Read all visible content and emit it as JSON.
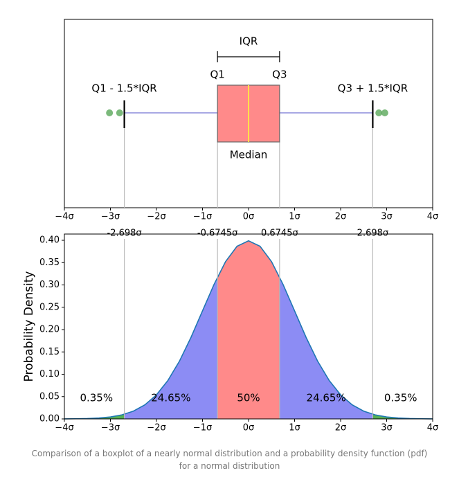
{
  "chart_data": [
    {
      "type": "box",
      "whisker_low": -2.698,
      "q1": -0.6745,
      "median": 0,
      "q3": 0.6745,
      "whisker_high": 2.698,
      "outliers": [
        -3.02,
        -2.8,
        2.83,
        2.96
      ],
      "xlim": [
        -4,
        4
      ],
      "xticks": [
        {
          "value": -4,
          "label": "−4σ"
        },
        {
          "value": -3,
          "label": "−3σ"
        },
        {
          "value": -2,
          "label": "−2σ"
        },
        {
          "value": -1,
          "label": "−1σ"
        },
        {
          "value": 0,
          "label": "0σ"
        },
        {
          "value": 1,
          "label": "1σ"
        },
        {
          "value": 2,
          "label": "2σ"
        },
        {
          "value": 3,
          "label": "3σ"
        },
        {
          "value": 4,
          "label": "4σ"
        }
      ],
      "labels": {
        "iqr": "IQR",
        "q1": "Q1",
        "q3": "Q3",
        "low": "Q1 - 1.5*IQR",
        "high": "Q3 + 1.5*IQR",
        "median": "Median"
      },
      "box_color": "#ff8a8a",
      "median_color": "#ffe04a",
      "whisker_color": "#8c8cdc",
      "outlier_color": "#5aa85a"
    },
    {
      "type": "density",
      "y_label": "Probability Density",
      "x": [
        -4,
        -3.75,
        -3.5,
        -3.25,
        -3,
        -2.75,
        -2.5,
        -2.25,
        -2,
        -1.75,
        -1.5,
        -1.25,
        -1,
        -0.75,
        -0.5,
        -0.25,
        0,
        0.25,
        0.5,
        0.75,
        1,
        1.25,
        1.5,
        1.75,
        2,
        2.25,
        2.5,
        2.75,
        3,
        3.25,
        3.5,
        3.75,
        4
      ],
      "values": [
        0.0001,
        0.0004,
        0.0009,
        0.002,
        0.0044,
        0.0091,
        0.0175,
        0.0317,
        0.054,
        0.0863,
        0.1295,
        0.1826,
        0.242,
        0.3011,
        0.3521,
        0.3867,
        0.3989,
        0.3867,
        0.3521,
        0.3011,
        0.242,
        0.1826,
        0.1295,
        0.0863,
        0.054,
        0.0317,
        0.0175,
        0.0091,
        0.0044,
        0.002,
        0.0009,
        0.0004,
        0.0001
      ],
      "curve_color": "#1f77b4",
      "regions": {
        "values": [
          0.35,
          24.65,
          50,
          24.65,
          0.35
        ],
        "value_labels": [
          "0.35%",
          "24.65%",
          "50%",
          "24.65%",
          "0.35%"
        ],
        "colors": [
          "#55b055",
          "#8c8cf4",
          "#ff8a8a",
          "#8c8cf4",
          "#55b055"
        ]
      },
      "xlim": [
        -4,
        4
      ],
      "ylim": [
        0,
        0.414
      ],
      "xticks": [
        {
          "value": -4,
          "label": "−4σ"
        },
        {
          "value": -3,
          "label": "−3σ"
        },
        {
          "value": -2,
          "label": "−2σ"
        },
        {
          "value": -1,
          "label": "−1σ"
        },
        {
          "value": 0,
          "label": "0σ"
        },
        {
          "value": 1,
          "label": "1σ"
        },
        {
          "value": 2,
          "label": "2σ"
        },
        {
          "value": 3,
          "label": "3σ"
        },
        {
          "value": 4,
          "label": "4σ"
        }
      ],
      "xticks_top": [
        {
          "value": -2.698,
          "label": "-2.698σ"
        },
        {
          "value": -0.6745,
          "label": "-0.6745σ"
        },
        {
          "value": 0.6745,
          "label": "0.6745σ"
        },
        {
          "value": 2.698,
          "label": "2.698σ"
        }
      ],
      "yticks": [
        {
          "value": 0,
          "label": "0.00"
        },
        {
          "value": 0.05,
          "label": "0.05"
        },
        {
          "value": 0.1,
          "label": "0.10"
        },
        {
          "value": 0.15,
          "label": "0.15"
        },
        {
          "value": 0.2,
          "label": "0.20"
        },
        {
          "value": 0.25,
          "label": "0.25"
        },
        {
          "value": 0.3,
          "label": "0.30"
        },
        {
          "value": 0.35,
          "label": "0.35"
        },
        {
          "value": 0.4,
          "label": "0.40"
        }
      ]
    }
  ],
  "caption": "Comparison of a boxplot of a nearly normal distribution and a probability density function (pdf) for a normal distribution"
}
